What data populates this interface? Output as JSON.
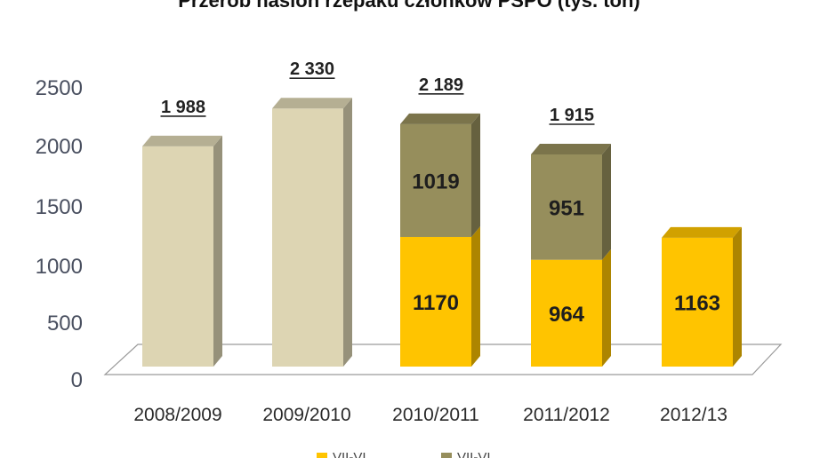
{
  "chart_data": {
    "type": "bar",
    "stacked": true,
    "title": "Przerób nasion rzepaku członków PSPO (tys. ton)",
    "categories": [
      "2008/2009",
      "2009/2010",
      "2010/2011",
      "2011/2012",
      "2012/13"
    ],
    "totals": [
      "1 988",
      "2 330",
      "2 189",
      "1 915",
      ""
    ],
    "series": [
      {
        "key": "total_only",
        "values": [
          1988,
          2330,
          null,
          null,
          null
        ],
        "segment_labels": [
          "",
          "",
          "",
          "",
          ""
        ]
      },
      {
        "key": "lower",
        "values": [
          null,
          null,
          1170,
          964,
          1163
        ],
        "segment_labels": [
          "",
          "",
          "1170",
          "964",
          "1163"
        ]
      },
      {
        "key": "upper",
        "values": [
          null,
          null,
          1019,
          951,
          null
        ],
        "segment_labels": [
          "",
          "",
          "1019",
          "951",
          ""
        ]
      }
    ],
    "ylim": [
      0,
      2500
    ],
    "yticks": [
      "0",
      "500",
      "1000",
      "1500",
      "2000",
      "2500"
    ],
    "legend_position": "bottom",
    "legend": [
      "VII-VI",
      "VII-VI"
    ],
    "colors": {
      "total_only": "#ddd5b3",
      "lower": "#ffc400",
      "upper": "#968e5c"
    }
  }
}
